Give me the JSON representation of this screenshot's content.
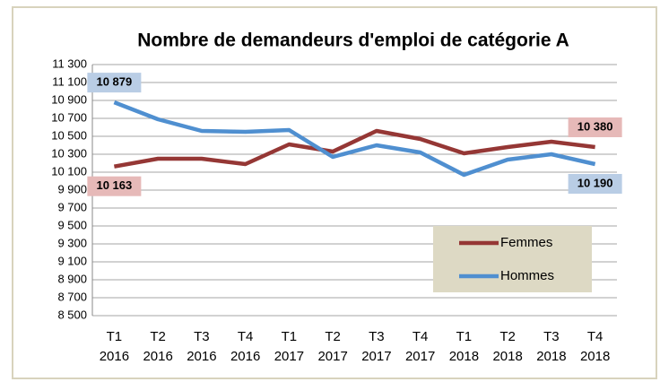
{
  "chart_data": {
    "type": "line",
    "title": "Nombre de demandeurs d'emploi de catégorie A",
    "categories": [
      "T1 2016",
      "T2 2016",
      "T3 2016",
      "T4 2016",
      "T1 2017",
      "T2 2017",
      "T3 2017",
      "T4 2017",
      "T1 2018",
      "T2 2018",
      "T3 2018",
      "T4 2018"
    ],
    "series": [
      {
        "name": "Femmes",
        "color": "#953735",
        "values": [
          10163,
          10250,
          10250,
          10190,
          10410,
          10330,
          10560,
          10470,
          10310,
          10380,
          10440,
          10380
        ],
        "value_labels": [
          "10 163",
          null,
          null,
          null,
          null,
          null,
          null,
          null,
          null,
          null,
          null,
          "10 380"
        ]
      },
      {
        "name": "Hommes",
        "color": "#4f8fd0",
        "values": [
          10879,
          10690,
          10560,
          10550,
          10570,
          10270,
          10400,
          10320,
          10070,
          10240,
          10300,
          10190
        ],
        "value_labels": [
          "10 879",
          null,
          null,
          null,
          null,
          null,
          null,
          null,
          null,
          null,
          null,
          "10 190"
        ]
      }
    ],
    "ylim": [
      8500,
      11300
    ],
    "yticks": [
      {
        "value": 8500,
        "label": "8 500"
      },
      {
        "value": 8700,
        "label": "8 700"
      },
      {
        "value": 8900,
        "label": "8 900"
      },
      {
        "value": 9100,
        "label": "9 100"
      },
      {
        "value": 9300,
        "label": "9 300"
      },
      {
        "value": 9500,
        "label": "9 500"
      },
      {
        "value": 9700,
        "label": "9 700"
      },
      {
        "value": 9900,
        "label": "9 900"
      },
      {
        "value": 10100,
        "label": "10 100"
      },
      {
        "value": 10300,
        "label": "10 300"
      },
      {
        "value": 10500,
        "label": "10 500"
      },
      {
        "value": 10700,
        "label": "10 700"
      },
      {
        "value": 10900,
        "label": "10 900"
      },
      {
        "value": 11100,
        "label": "11 100"
      },
      {
        "value": 11300,
        "label": "11 300"
      }
    ],
    "grid": true,
    "legend": "lower right"
  }
}
